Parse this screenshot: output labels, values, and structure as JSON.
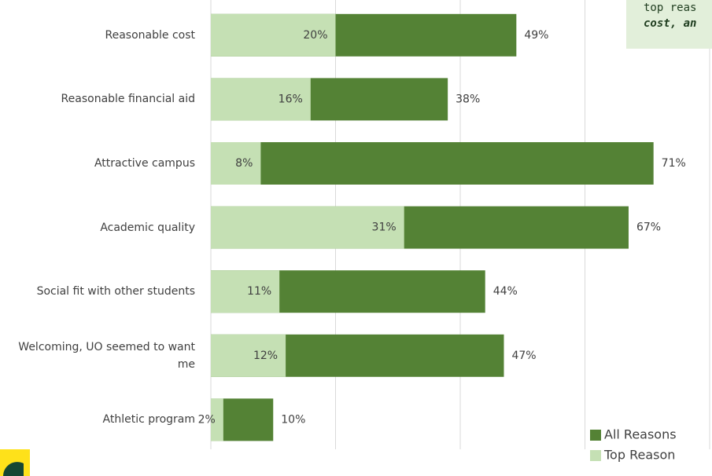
{
  "chart_data": {
    "type": "bar",
    "orientation": "horizontal",
    "categories": [
      "Reasonable cost",
      "Reasonable financial aid",
      "Attractive campus",
      "Academic quality",
      "Social fit with other students",
      "Welcoming, UO seemed to want me",
      "Athletic program"
    ],
    "series": [
      {
        "name": "All Reasons",
        "color": "#548235",
        "values": [
          49,
          38,
          71,
          67,
          44,
          47,
          10
        ],
        "value_labels": [
          "49%",
          "38%",
          "71%",
          "67%",
          "44%",
          "47%",
          "10%"
        ]
      },
      {
        "name": "Top Reason",
        "color": "#c5e0b4",
        "values": [
          20,
          16,
          8,
          31,
          11,
          12,
          2
        ],
        "value_labels": [
          "20%",
          "16%",
          "8%",
          "31%",
          "11%",
          "12%",
          "2%"
        ]
      }
    ],
    "xlim": [
      0,
      80
    ],
    "xticks": [
      0,
      20,
      40,
      60,
      80
    ],
    "grid": true,
    "annotations": [
      "top reas",
      "cost, an"
    ]
  }
}
